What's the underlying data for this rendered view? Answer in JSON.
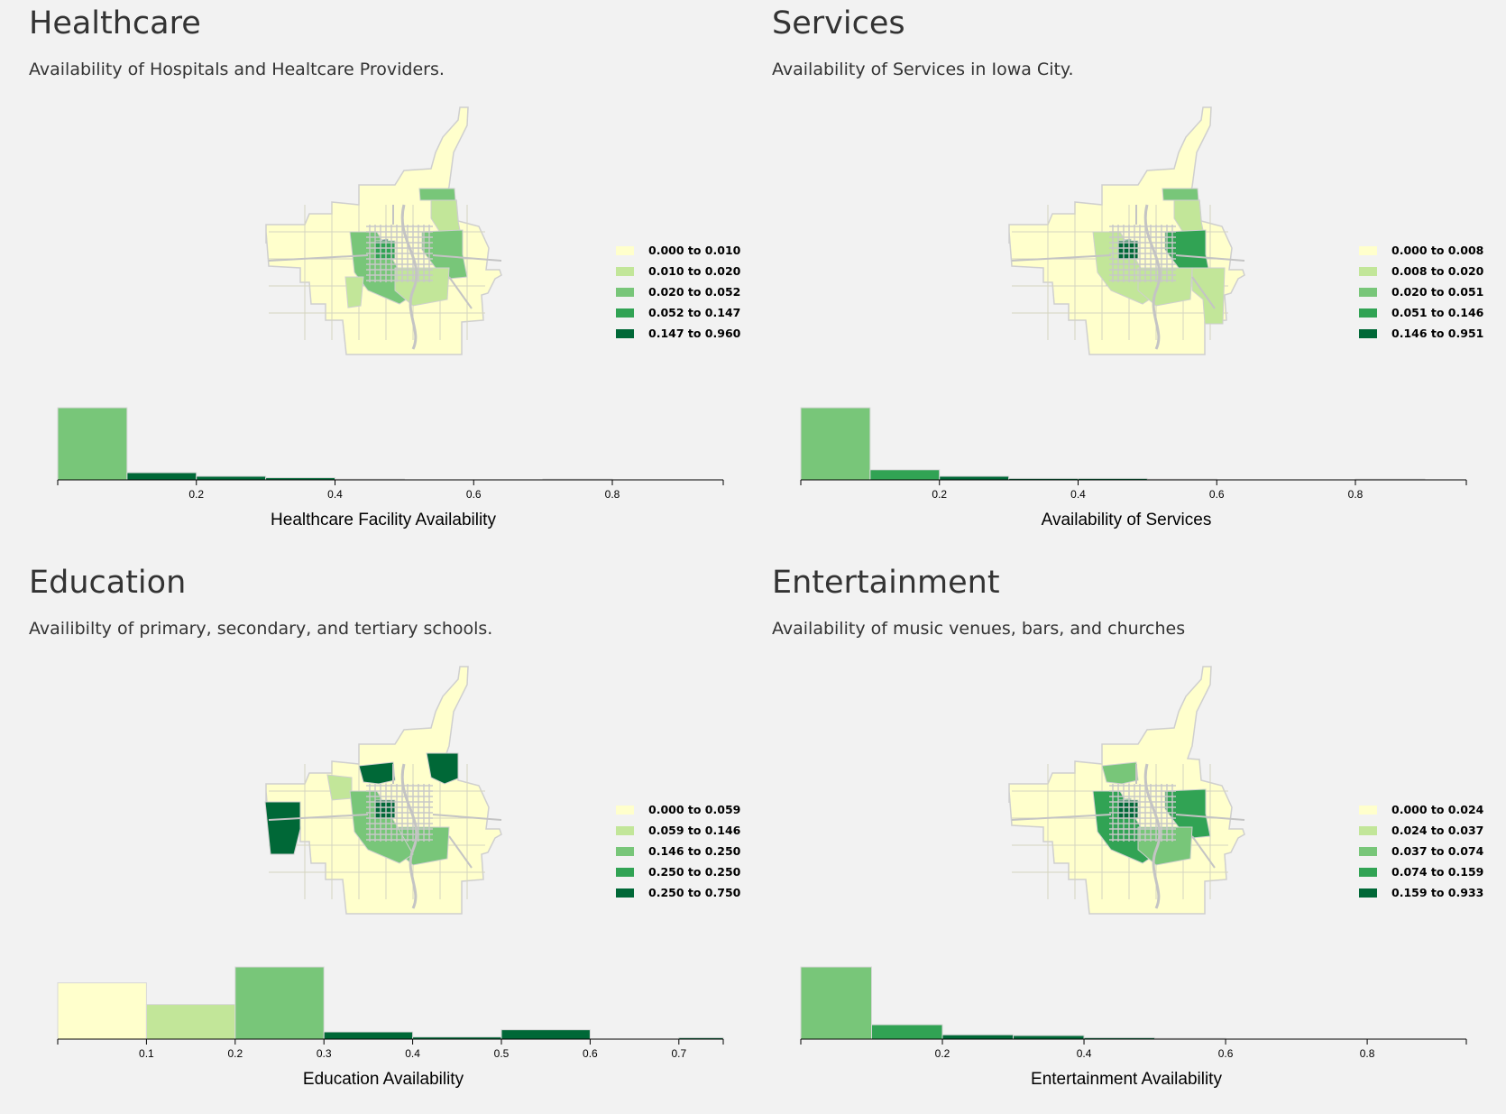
{
  "palette": [
    "#ffffcc",
    "#c2e699",
    "#78c679",
    "#31a354",
    "#006837"
  ],
  "panels": [
    {
      "title": "Healthcare",
      "subtitle": "Availability of Hospitals and Healtcare Providers.",
      "legend": [
        "0.000 to 0.010",
        "0.010 to 0.020",
        "0.020 to 0.052",
        "0.052 to 0.147",
        "0.147 to 0.960"
      ],
      "map": {
        "base_color_index": 0,
        "regions": [
          {
            "name": "north-strip",
            "color_index": 2
          },
          {
            "name": "northeast",
            "color_index": 1
          },
          {
            "name": "core-west",
            "color_index": 4
          },
          {
            "name": "core-center",
            "color_index": 2
          },
          {
            "name": "core-east",
            "color_index": 2
          },
          {
            "name": "south-center",
            "color_index": 1
          },
          {
            "name": "southwest-strip",
            "color_index": 1
          },
          {
            "name": "downtown",
            "color_index": 3
          }
        ]
      }
    },
    {
      "title": "Services",
      "subtitle": "Availability of Services in Iowa City.",
      "legend": [
        "0.000 to 0.008",
        "0.008 to 0.020",
        "0.020 to 0.051",
        "0.051 to 0.146",
        "0.146 to 0.951"
      ],
      "map": {
        "base_color_index": 0,
        "regions": [
          {
            "name": "north-strip",
            "color_index": 2
          },
          {
            "name": "northeast",
            "color_index": 1
          },
          {
            "name": "core-west",
            "color_index": 3
          },
          {
            "name": "core-center",
            "color_index": 1
          },
          {
            "name": "core-east",
            "color_index": 3
          },
          {
            "name": "south-center",
            "color_index": 1
          },
          {
            "name": "southeast-long",
            "color_index": 1
          },
          {
            "name": "downtown",
            "color_index": 4
          }
        ]
      }
    },
    {
      "title": "Education",
      "subtitle": "Availibilty of primary, secondary, and tertiary schools.",
      "legend": [
        "0.000 to 0.059",
        "0.059 to 0.146",
        "0.146 to 0.250",
        "0.250 to 0.250",
        "0.250 to 0.750"
      ],
      "map": {
        "base_color_index": 0,
        "regions": [
          {
            "name": "far-west",
            "color_index": 4
          },
          {
            "name": "northwest",
            "color_index": 1
          },
          {
            "name": "north-central",
            "color_index": 4
          },
          {
            "name": "northeast-block",
            "color_index": 4
          },
          {
            "name": "south-center",
            "color_index": 2
          },
          {
            "name": "core-center",
            "color_index": 2
          },
          {
            "name": "downtown",
            "color_index": 4
          }
        ]
      }
    },
    {
      "title": "Entertainment",
      "subtitle": "Availability of music venues, bars, and churches",
      "legend": [
        "0.000 to 0.024",
        "0.024 to 0.037",
        "0.037 to 0.074",
        "0.074 to 0.159",
        "0.159 to 0.933"
      ],
      "map": {
        "base_color_index": 0,
        "regions": [
          {
            "name": "core-west",
            "color_index": 2
          },
          {
            "name": "core-center",
            "color_index": 3
          },
          {
            "name": "core-east",
            "color_index": 3
          },
          {
            "name": "south-center",
            "color_index": 2
          },
          {
            "name": "north-central",
            "color_index": 2
          },
          {
            "name": "downtown",
            "color_index": 4
          }
        ]
      }
    }
  ],
  "chart_data": [
    {
      "type": "bar",
      "xlabel": "Healthcare Facility Availability",
      "xlim": [
        0,
        0.96
      ],
      "ticks": [
        0.2,
        0.4,
        0.6,
        0.8
      ],
      "bins": [
        {
          "x0": 0.0,
          "x1": 0.1,
          "count": 100,
          "color_index": 2
        },
        {
          "x0": 0.1,
          "x1": 0.2,
          "count": 10,
          "color_index": 4
        },
        {
          "x0": 0.2,
          "x1": 0.3,
          "count": 5,
          "color_index": 4
        },
        {
          "x0": 0.3,
          "x1": 0.4,
          "count": 3,
          "color_index": 4
        },
        {
          "x0": 0.4,
          "x1": 0.5,
          "count": 1,
          "color_index": 4
        },
        {
          "x0": 0.7,
          "x1": 0.8,
          "count": 0.5,
          "color_index": 4
        }
      ]
    },
    {
      "type": "bar",
      "xlabel": "Availability of Services",
      "xlim": [
        0,
        0.96
      ],
      "ticks": [
        0.2,
        0.4,
        0.6,
        0.8
      ],
      "bins": [
        {
          "x0": 0.0,
          "x1": 0.1,
          "count": 100,
          "color_index": 2
        },
        {
          "x0": 0.1,
          "x1": 0.2,
          "count": 14,
          "color_index": 3
        },
        {
          "x0": 0.2,
          "x1": 0.3,
          "count": 5,
          "color_index": 4
        },
        {
          "x0": 0.3,
          "x1": 0.4,
          "count": 2,
          "color_index": 4
        },
        {
          "x0": 0.4,
          "x1": 0.5,
          "count": 2,
          "color_index": 4
        },
        {
          "x0": 0.5,
          "x1": 0.6,
          "count": 0.5,
          "color_index": 4
        },
        {
          "x0": 0.8,
          "x1": 0.9,
          "count": 0.5,
          "color_index": 4
        }
      ]
    },
    {
      "type": "bar",
      "xlabel": "Education Availability",
      "xlim": [
        0,
        0.75
      ],
      "ticks": [
        0.1,
        0.2,
        0.3,
        0.4,
        0.5,
        0.6,
        0.7
      ],
      "bins": [
        {
          "x0": 0.0,
          "x1": 0.1,
          "count": 78,
          "color_index": 0
        },
        {
          "x0": 0.1,
          "x1": 0.2,
          "count": 48,
          "color_index": 1
        },
        {
          "x0": 0.2,
          "x1": 0.3,
          "count": 100,
          "color_index": 2
        },
        {
          "x0": 0.3,
          "x1": 0.4,
          "count": 10,
          "color_index": 4
        },
        {
          "x0": 0.4,
          "x1": 0.5,
          "count": 3,
          "color_index": 4
        },
        {
          "x0": 0.5,
          "x1": 0.6,
          "count": 13,
          "color_index": 4
        },
        {
          "x0": 0.7,
          "x1": 0.75,
          "count": 2,
          "color_index": 4
        }
      ]
    },
    {
      "type": "bar",
      "xlabel": "Entertainment Availability",
      "xlim": [
        0,
        0.94
      ],
      "ticks": [
        0.2,
        0.4,
        0.6,
        0.8
      ],
      "bins": [
        {
          "x0": 0.0,
          "x1": 0.1,
          "count": 100,
          "color_index": 2
        },
        {
          "x0": 0.1,
          "x1": 0.2,
          "count": 20,
          "color_index": 3
        },
        {
          "x0": 0.2,
          "x1": 0.3,
          "count": 6,
          "color_index": 4
        },
        {
          "x0": 0.3,
          "x1": 0.4,
          "count": 5,
          "color_index": 4
        },
        {
          "x0": 0.4,
          "x1": 0.5,
          "count": 2,
          "color_index": 4
        },
        {
          "x0": 0.5,
          "x1": 0.6,
          "count": 1,
          "color_index": 4
        }
      ]
    }
  ]
}
